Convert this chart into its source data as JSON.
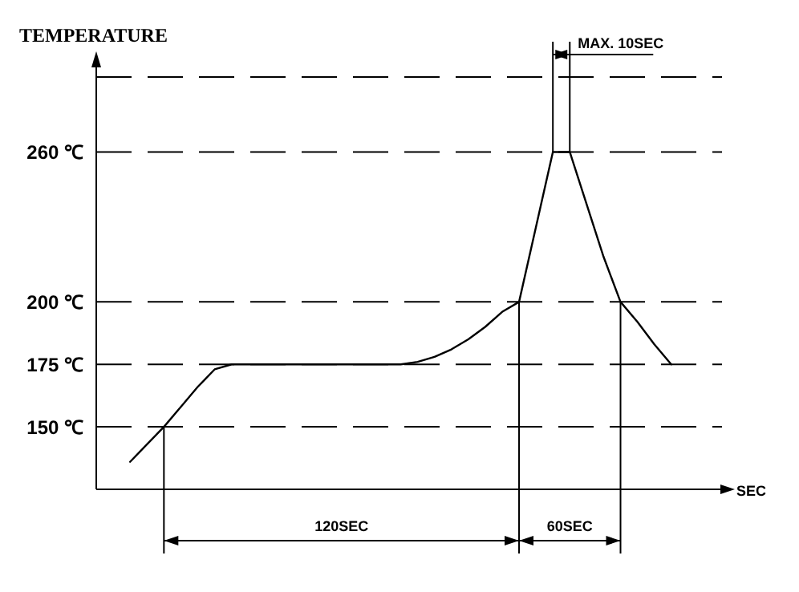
{
  "chart_data": {
    "type": "line",
    "xlabel": "SEC",
    "ylabel": "TEMPERATURE",
    "categories": [
      null,
      null,
      null,
      null,
      null,
      null,
      null,
      null,
      null,
      null,
      null,
      null,
      null,
      null,
      null,
      null,
      null,
      null,
      null,
      null,
      null,
      null,
      null,
      null,
      null,
      null,
      null,
      null,
      null,
      null,
      null,
      null,
      null,
      null,
      null,
      null,
      null,
      null
    ],
    "series": [
      {
        "color": "#000000",
        "values": [
          null,
          null,
          136,
          143,
          150,
          158,
          166,
          173,
          175,
          175,
          175,
          175,
          175,
          175,
          175,
          175,
          175,
          175,
          175,
          176,
          178,
          181,
          185,
          190,
          196,
          200,
          230,
          260,
          260,
          239,
          218,
          200,
          192,
          183,
          175,
          null,
          null,
          null
        ]
      }
    ],
    "ylim": [
      125,
      290
    ],
    "yticks": [
      {
        "value": 150,
        "label": "150 ℃"
      },
      {
        "value": 175,
        "label": "175 ℃"
      },
      {
        "value": 200,
        "label": "200 ℃"
      },
      {
        "value": 260,
        "label": "260 ℃"
      }
    ],
    "tick_labels": "y",
    "grid": "y",
    "marker": "none",
    "line_style": "solid",
    "annotations": [
      "120SEC",
      "60SEC",
      "MAX. 10SEC"
    ]
  }
}
